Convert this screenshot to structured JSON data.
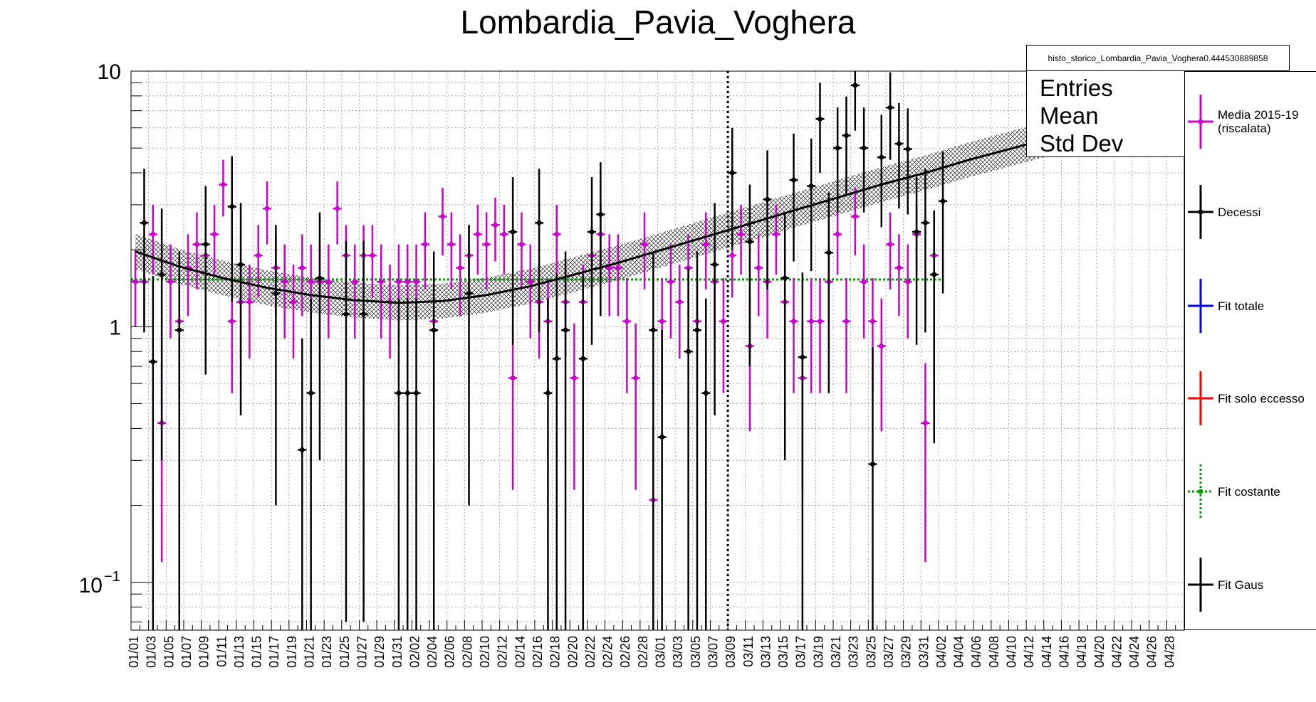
{
  "title": "Lombardia_Pavia_Voghera",
  "stats": {
    "name": "histo_storico_Lombardia_Pavia_Voghera0.444530889858",
    "entries_label": "Entries",
    "mean_label": "Mean",
    "stddev_label": "Std Dev"
  },
  "legend": [
    {
      "label": "Media 2015-19\n(riscalata)",
      "color": "#cc00cc",
      "style": "errorbar"
    },
    {
      "label": "Decessi",
      "color": "#000000",
      "style": "errorbar"
    },
    {
      "label": "Fit totale",
      "color": "#0000ff",
      "style": "line"
    },
    {
      "label": "Fit solo eccesso",
      "color": "#ff0000",
      "style": "line"
    },
    {
      "label": "Fit costante",
      "color": "#009900",
      "style": "dotted"
    },
    {
      "label": "Fit Gaus",
      "color": "#000000",
      "style": "line"
    }
  ],
  "chart_data": {
    "type": "scatter",
    "yscale": "log",
    "ylim": [
      0.065,
      10
    ],
    "y_tick_labels": [
      "10",
      "1",
      "10^-1"
    ],
    "x_tick_labels": [
      "01/01",
      "01/03",
      "01/05",
      "01/07",
      "01/09",
      "01/11",
      "01/13",
      "01/15",
      "01/17",
      "01/19",
      "01/21",
      "01/23",
      "01/25",
      "01/27",
      "01/29",
      "01/31",
      "02/02",
      "02/04",
      "02/06",
      "02/08",
      "02/10",
      "02/12",
      "02/14",
      "02/16",
      "02/18",
      "02/20",
      "02/22",
      "02/24",
      "02/26",
      "02/28",
      "03/01",
      "03/03",
      "03/05",
      "03/07",
      "03/09",
      "03/11",
      "03/13",
      "03/15",
      "03/17",
      "03/19",
      "03/21",
      "03/23",
      "03/25",
      "03/27",
      "03/29",
      "03/31",
      "04/02",
      "04/04",
      "04/06",
      "04/08",
      "04/10",
      "04/12",
      "04/14",
      "04/16",
      "04/18",
      "04/20",
      "04/22",
      "04/24",
      "04/26",
      "04/28"
    ],
    "grid": true,
    "vertical_marker_day": 68,
    "series": [
      {
        "name": "Media 2015-19 (riscalata)",
        "color": "#cc00cc",
        "points": [
          [
            0,
            1.5,
            0.5
          ],
          [
            1,
            1.5,
            0.5
          ],
          [
            2,
            2.3,
            0.7
          ],
          [
            3,
            0.42,
            0.3
          ],
          [
            4,
            1.5,
            0.6
          ],
          [
            5,
            1.05,
            0.5
          ],
          [
            6,
            1.7,
            0.6
          ],
          [
            7,
            2.1,
            0.7
          ],
          [
            8,
            1.9,
            0.6
          ],
          [
            9,
            2.3,
            0.7
          ],
          [
            10,
            3.6,
            0.9
          ],
          [
            11,
            1.05,
            0.5
          ],
          [
            12,
            1.25,
            0.5
          ],
          [
            13,
            1.25,
            0.5
          ],
          [
            14,
            1.9,
            0.6
          ],
          [
            15,
            2.9,
            0.8
          ],
          [
            16,
            1.7,
            0.6
          ],
          [
            17,
            1.5,
            0.6
          ],
          [
            18,
            1.25,
            0.5
          ],
          [
            19,
            1.7,
            0.6
          ],
          [
            20,
            1.5,
            0.6
          ],
          [
            21,
            1.5,
            0.6
          ],
          [
            22,
            1.5,
            0.6
          ],
          [
            23,
            2.9,
            0.8
          ],
          [
            24,
            1.9,
            0.6
          ],
          [
            25,
            1.5,
            0.6
          ],
          [
            26,
            1.9,
            0.6
          ],
          [
            27,
            1.9,
            0.6
          ],
          [
            28,
            1.5,
            0.6
          ],
          [
            29,
            1.25,
            0.5
          ],
          [
            30,
            1.5,
            0.6
          ],
          [
            31,
            1.5,
            0.6
          ],
          [
            32,
            1.5,
            0.6
          ],
          [
            33,
            2.1,
            0.7
          ],
          [
            34,
            1.05,
            0.5
          ],
          [
            35,
            2.7,
            0.8
          ],
          [
            36,
            2.1,
            0.7
          ],
          [
            37,
            1.7,
            0.6
          ],
          [
            38,
            1.9,
            0.6
          ],
          [
            39,
            2.3,
            0.7
          ],
          [
            40,
            2.1,
            0.7
          ],
          [
            41,
            2.5,
            0.7
          ],
          [
            42,
            2.3,
            0.7
          ],
          [
            43,
            0.63,
            0.4
          ],
          [
            44,
            2.1,
            0.7
          ],
          [
            45,
            1.5,
            0.6
          ],
          [
            46,
            1.25,
            0.5
          ],
          [
            47,
            1.05,
            0.5
          ],
          [
            48,
            2.3,
            0.7
          ],
          [
            49,
            1.25,
            0.5
          ],
          [
            50,
            0.63,
            0.4
          ],
          [
            51,
            1.25,
            0.5
          ],
          [
            52,
            1.9,
            0.6
          ],
          [
            53,
            2.3,
            0.7
          ],
          [
            54,
            1.7,
            0.6
          ],
          [
            55,
            1.7,
            0.6
          ],
          [
            56,
            1.05,
            0.5
          ],
          [
            57,
            0.63,
            0.4
          ],
          [
            58,
            2.1,
            0.7
          ],
          [
            59,
            0.21,
            0.2
          ],
          [
            60,
            1.05,
            0.5
          ],
          [
            61,
            1.5,
            0.6
          ],
          [
            62,
            1.25,
            0.5
          ],
          [
            63,
            1.7,
            0.6
          ],
          [
            64,
            1.05,
            0.5
          ],
          [
            65,
            2.1,
            0.7
          ],
          [
            66,
            1.5,
            0.6
          ],
          [
            67,
            1.05,
            0.5
          ],
          [
            68,
            1.9,
            0.6
          ],
          [
            69,
            2.3,
            0.7
          ],
          [
            70,
            0.84,
            0.45
          ],
          [
            71,
            1.7,
            0.6
          ],
          [
            72,
            1.5,
            0.6
          ],
          [
            73,
            2.3,
            0.7
          ],
          [
            74,
            1.25,
            0.5
          ],
          [
            75,
            1.05,
            0.5
          ],
          [
            76,
            0.63,
            0.4
          ],
          [
            77,
            1.05,
            0.5
          ],
          [
            78,
            1.05,
            0.5
          ],
          [
            79,
            1.5,
            0.6
          ],
          [
            80,
            2.3,
            0.7
          ],
          [
            81,
            1.05,
            0.5
          ],
          [
            82,
            2.7,
            0.8
          ],
          [
            83,
            1.5,
            0.6
          ],
          [
            84,
            1.05,
            0.5
          ],
          [
            85,
            0.84,
            0.45
          ],
          [
            86,
            2.1,
            0.7
          ],
          [
            87,
            1.7,
            0.6
          ],
          [
            88,
            1.5,
            0.6
          ],
          [
            89,
            2.3,
            0.7
          ],
          [
            90,
            0.42,
            0.3
          ],
          [
            91,
            1.9,
            0.6
          ]
        ]
      },
      {
        "name": "Decessi",
        "color": "#000000",
        "points": [
          [
            1,
            2.55,
            1.6
          ],
          [
            2,
            0.73,
            0.85
          ],
          [
            3,
            1.6,
            1.3
          ],
          [
            5,
            0.97,
            1.0
          ],
          [
            8,
            2.1,
            1.45
          ],
          [
            11,
            2.95,
            1.7
          ],
          [
            12,
            1.75,
            1.3
          ],
          [
            16,
            1.35,
            1.15
          ],
          [
            19,
            0.33,
            0.57
          ],
          [
            20,
            0.55,
            0.74
          ],
          [
            21,
            1.55,
            1.25
          ],
          [
            24,
            1.12,
            1.05
          ],
          [
            26,
            1.12,
            1.05
          ],
          [
            30,
            0.55,
            0.74
          ],
          [
            31,
            0.55,
            0.74
          ],
          [
            32,
            0.55,
            0.74
          ],
          [
            34,
            0.97,
            1.0
          ],
          [
            38,
            1.35,
            1.15
          ],
          [
            43,
            2.35,
            1.5
          ],
          [
            46,
            2.55,
            1.6
          ],
          [
            47,
            0.55,
            0.74
          ],
          [
            48,
            0.75,
            0.86
          ],
          [
            49,
            0.97,
            1.0
          ],
          [
            51,
            0.75,
            0.86
          ],
          [
            52,
            2.35,
            1.5
          ],
          [
            53,
            2.75,
            1.65
          ],
          [
            59,
            0.97,
            1.0
          ],
          [
            60,
            0.37,
            0.6
          ],
          [
            63,
            0.8,
            0.9
          ],
          [
            64,
            0.97,
            1.0
          ],
          [
            65,
            0.55,
            0.74
          ],
          [
            66,
            1.75,
            1.3
          ],
          [
            68,
            4.0,
            2.0
          ],
          [
            70,
            2.15,
            1.45
          ],
          [
            72,
            3.15,
            1.75
          ],
          [
            74,
            1.55,
            1.25
          ],
          [
            75,
            3.75,
            1.95
          ],
          [
            76,
            0.76,
            0.87
          ],
          [
            77,
            3.55,
            1.9
          ],
          [
            78,
            6.5,
            2.5
          ],
          [
            79,
            1.95,
            1.4
          ],
          [
            80,
            5.0,
            2.2
          ],
          [
            81,
            5.6,
            2.35
          ],
          [
            82,
            8.8,
            2.95
          ],
          [
            83,
            5.0,
            2.2
          ],
          [
            84,
            0.29,
            0.54
          ],
          [
            85,
            4.6,
            2.15
          ],
          [
            86,
            7.2,
            2.7
          ],
          [
            87,
            5.2,
            2.3
          ],
          [
            88,
            4.95,
            2.2
          ],
          [
            89,
            2.35,
            1.5
          ],
          [
            90,
            2.55,
            1.6
          ],
          [
            91,
            1.6,
            1.25
          ],
          [
            92,
            3.1,
            1.75
          ]
        ]
      }
    ],
    "fit_gaus_curve": [
      [
        0,
        1.97
      ],
      [
        5,
        1.72
      ],
      [
        10,
        1.55
      ],
      [
        15,
        1.42
      ],
      [
        20,
        1.33
      ],
      [
        25,
        1.27
      ],
      [
        30,
        1.24
      ],
      [
        35,
        1.26
      ],
      [
        40,
        1.33
      ],
      [
        45,
        1.44
      ],
      [
        50,
        1.6
      ],
      [
        55,
        1.78
      ],
      [
        60,
        2.0
      ],
      [
        65,
        2.25
      ],
      [
        70,
        2.53
      ],
      [
        75,
        2.85
      ],
      [
        80,
        3.2
      ],
      [
        85,
        3.6
      ],
      [
        90,
        4.0
      ],
      [
        95,
        4.5
      ],
      [
        100,
        5.0
      ],
      [
        105,
        5.55
      ],
      [
        110,
        6.15
      ]
    ],
    "fit_gaus_band_halfwidth_ratio": 0.17,
    "fit_costante_value": 1.53
  }
}
